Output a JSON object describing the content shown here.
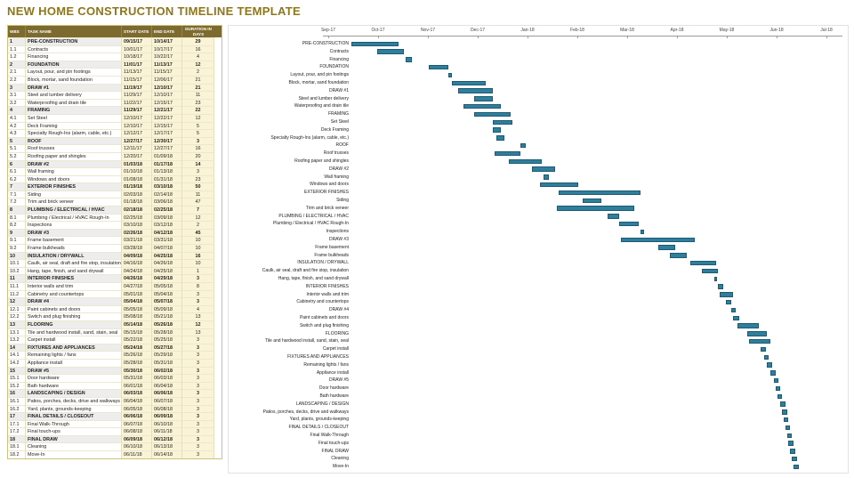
{
  "title": "NEW HOME CONSTRUCTION TIMELINE TEMPLATE",
  "colors": {
    "title_text": "#8f7618",
    "table_header_bg": "#7c6a2e",
    "date_cell_bg": "#fbf3d5",
    "section_row_bg": "#ededed",
    "bar_fill": "#2e7e9c",
    "bar_border": "#1e5b73"
  },
  "table": {
    "headers": [
      "WBS",
      "TASK NAME",
      "START DATE",
      "END DATE",
      "DURATION IN DAYS"
    ]
  },
  "chart_data": {
    "type": "bar",
    "variant": "gantt",
    "title": "NEW HOME CONSTRUCTION TIMELINE TEMPLATE",
    "axis": {
      "start": "09/01/17",
      "end": "07/01/18",
      "month_labels": [
        "Sep-17",
        "Oct-17",
        "Nov-17",
        "Dec-17",
        "Jan-18",
        "Feb-18",
        "Mar-18",
        "Apr-18",
        "May-18",
        "Jun-18",
        "Jul-18"
      ]
    },
    "tasks": [
      {
        "wbs": "1",
        "name": "PRE-CONSTRUCTION",
        "start": "09/15/17",
        "end": "10/14/17",
        "days": 29,
        "section": true
      },
      {
        "wbs": "1.1",
        "name": "Contracts",
        "start": "10/01/17",
        "end": "10/17/17",
        "days": 16,
        "section": false
      },
      {
        "wbs": "1.2",
        "name": "Financing",
        "start": "10/18/17",
        "end": "10/22/17",
        "days": 4,
        "section": false
      },
      {
        "wbs": "2",
        "name": "FOUNDATION",
        "start": "11/01/17",
        "end": "11/13/17",
        "days": 12,
        "section": true
      },
      {
        "wbs": "2.1",
        "name": "Layout, pour, and pin footings",
        "start": "11/13/17",
        "end": "11/15/17",
        "days": 2,
        "section": false
      },
      {
        "wbs": "2.2",
        "name": "Block, mortar, sand foundation",
        "start": "11/15/17",
        "end": "12/06/17",
        "days": 21,
        "section": false
      },
      {
        "wbs": "3",
        "name": "DRAW #1",
        "start": "11/19/17",
        "end": "12/10/17",
        "days": 21,
        "section": true
      },
      {
        "wbs": "3.1",
        "name": "Steel and lumber delivery",
        "start": "11/29/17",
        "end": "12/10/17",
        "days": 11,
        "section": false
      },
      {
        "wbs": "3.2",
        "name": "Waterproofing and drain tile",
        "start": "11/22/17",
        "end": "12/15/17",
        "days": 23,
        "section": false
      },
      {
        "wbs": "4",
        "name": "FRAMING",
        "start": "11/29/17",
        "end": "12/21/17",
        "days": 22,
        "section": true
      },
      {
        "wbs": "4.1",
        "name": "Set Steel",
        "start": "12/10/17",
        "end": "12/22/17",
        "days": 12,
        "section": false
      },
      {
        "wbs": "4.2",
        "name": "Deck Framing",
        "start": "12/10/17",
        "end": "12/15/17",
        "days": 5,
        "section": false
      },
      {
        "wbs": "4.3",
        "name": "Specialty Rough-Ins (alarm, cable, etc.)",
        "start": "12/12/17",
        "end": "12/17/17",
        "days": 5,
        "section": false
      },
      {
        "wbs": "5",
        "name": "ROOF",
        "start": "12/27/17",
        "end": "12/30/17",
        "days": 3,
        "section": true
      },
      {
        "wbs": "5.1",
        "name": "Roof trusses",
        "start": "12/11/17",
        "end": "12/27/17",
        "days": 16,
        "section": false
      },
      {
        "wbs": "5.2",
        "name": "Roofing paper and shingles",
        "start": "12/20/17",
        "end": "01/09/18",
        "days": 20,
        "section": false
      },
      {
        "wbs": "6",
        "name": "DRAW #2",
        "start": "01/03/18",
        "end": "01/17/18",
        "days": 14,
        "section": true
      },
      {
        "wbs": "6.1",
        "name": "Wall framing",
        "start": "01/10/18",
        "end": "01/13/18",
        "days": 3,
        "section": false
      },
      {
        "wbs": "6.2",
        "name": "Windows and doors",
        "start": "01/08/18",
        "end": "01/31/18",
        "days": 23,
        "section": false
      },
      {
        "wbs": "7",
        "name": "EXTERIOR FINISHES",
        "start": "01/19/18",
        "end": "03/10/18",
        "days": 50,
        "section": true
      },
      {
        "wbs": "7.1",
        "name": "Siding",
        "start": "02/03/18",
        "end": "02/14/18",
        "days": 11,
        "section": false
      },
      {
        "wbs": "7.2",
        "name": "Trim and brick veneer",
        "start": "01/18/18",
        "end": "03/06/18",
        "days": 47,
        "section": false
      },
      {
        "wbs": "8",
        "name": "PLUMBING / ELECTRICAL / HVAC",
        "start": "02/18/18",
        "end": "02/25/18",
        "days": 7,
        "section": true
      },
      {
        "wbs": "8.1",
        "name": "Plumbing / Electrical / HVAC Rough-In",
        "start": "02/25/18",
        "end": "03/09/18",
        "days": 12,
        "section": false
      },
      {
        "wbs": "8.2",
        "name": "Inspections",
        "start": "03/10/18",
        "end": "03/12/18",
        "days": 2,
        "section": false
      },
      {
        "wbs": "9",
        "name": "DRAW #3",
        "start": "02/26/18",
        "end": "04/12/18",
        "days": 45,
        "section": true
      },
      {
        "wbs": "9.1",
        "name": "Frame basement",
        "start": "03/21/18",
        "end": "03/31/18",
        "days": 10,
        "section": false
      },
      {
        "wbs": "9.2",
        "name": "Frame bulkheads",
        "start": "03/28/18",
        "end": "04/07/18",
        "days": 10,
        "section": false
      },
      {
        "wbs": "10",
        "name": "INSULATION / DRYWALL",
        "start": "04/09/18",
        "end": "04/25/18",
        "days": 16,
        "section": true
      },
      {
        "wbs": "10.1",
        "name": "Caulk, air seal, draft and fire stop, insulation",
        "start": "04/16/18",
        "end": "04/26/18",
        "days": 10,
        "section": false
      },
      {
        "wbs": "10.2",
        "name": "Hang, tape, finish, and sand drywall",
        "start": "04/24/18",
        "end": "04/25/18",
        "days": 1,
        "section": false
      },
      {
        "wbs": "11",
        "name": "INTERIOR FINISHES",
        "start": "04/26/18",
        "end": "04/29/18",
        "days": 3,
        "section": true
      },
      {
        "wbs": "11.1",
        "name": "Interior walls and trim",
        "start": "04/27/18",
        "end": "05/05/18",
        "days": 8,
        "section": false
      },
      {
        "wbs": "11.2",
        "name": "Cabinetry and countertops",
        "start": "05/01/18",
        "end": "05/04/18",
        "days": 3,
        "section": false
      },
      {
        "wbs": "12",
        "name": "DRAW #4",
        "start": "05/04/18",
        "end": "05/07/18",
        "days": 3,
        "section": true
      },
      {
        "wbs": "12.1",
        "name": "Paint cabinets and doors",
        "start": "05/05/18",
        "end": "05/09/18",
        "days": 4,
        "section": false
      },
      {
        "wbs": "12.2",
        "name": "Switch and plug finishing",
        "start": "05/08/18",
        "end": "05/21/18",
        "days": 13,
        "section": false
      },
      {
        "wbs": "13",
        "name": "FLOORING",
        "start": "05/14/18",
        "end": "05/26/18",
        "days": 12,
        "section": true
      },
      {
        "wbs": "13.1",
        "name": "Tile and hardwood install, sand, stain, seal",
        "start": "05/15/18",
        "end": "05/28/18",
        "days": 13,
        "section": false
      },
      {
        "wbs": "13.2",
        "name": "Carpet install",
        "start": "05/22/18",
        "end": "05/25/18",
        "days": 3,
        "section": false
      },
      {
        "wbs": "14",
        "name": "FIXTURES AND APPLIANCES",
        "start": "05/24/18",
        "end": "05/27/18",
        "days": 3,
        "section": true
      },
      {
        "wbs": "14.1",
        "name": "Remaining lights / fans",
        "start": "05/26/18",
        "end": "05/29/18",
        "days": 3,
        "section": false
      },
      {
        "wbs": "14.2",
        "name": "Appliance install",
        "start": "05/28/18",
        "end": "05/31/18",
        "days": 3,
        "section": false
      },
      {
        "wbs": "15",
        "name": "DRAW #5",
        "start": "05/30/18",
        "end": "06/02/18",
        "days": 3,
        "section": true
      },
      {
        "wbs": "15.1",
        "name": "Door hardware",
        "start": "05/31/18",
        "end": "06/03/18",
        "days": 3,
        "section": false
      },
      {
        "wbs": "15.2",
        "name": "Bath hardware",
        "start": "06/01/18",
        "end": "06/04/18",
        "days": 3,
        "section": false
      },
      {
        "wbs": "16",
        "name": "LANDSCAPING / DESIGN",
        "start": "06/03/18",
        "end": "06/06/18",
        "days": 3,
        "section": true
      },
      {
        "wbs": "16.1",
        "name": "Patios, porches, decks, drive and walkways",
        "start": "06/04/18",
        "end": "06/07/18",
        "days": 3,
        "section": false
      },
      {
        "wbs": "16.2",
        "name": "Yard, plants, grounds-keeping",
        "start": "06/05/18",
        "end": "06/08/18",
        "days": 3,
        "section": false
      },
      {
        "wbs": "17",
        "name": "FINAL DETAILS / CLOSEOUT",
        "start": "06/06/18",
        "end": "06/09/18",
        "days": 3,
        "section": true
      },
      {
        "wbs": "17.1",
        "name": "Final Walk-Through",
        "start": "06/07/18",
        "end": "06/10/18",
        "days": 3,
        "section": false
      },
      {
        "wbs": "17.2",
        "name": "Final touch-ups",
        "start": "06/08/18",
        "end": "06/11/18",
        "days": 3,
        "section": false
      },
      {
        "wbs": "18",
        "name": "FINAL DRAW",
        "start": "06/09/18",
        "end": "06/12/18",
        "days": 3,
        "section": true
      },
      {
        "wbs": "18.1",
        "name": "Cleaning",
        "start": "06/10/18",
        "end": "06/13/18",
        "days": 3,
        "section": false
      },
      {
        "wbs": "18.2",
        "name": "Move-In",
        "start": "06/11/18",
        "end": "06/14/18",
        "days": 3,
        "section": false
      }
    ]
  }
}
